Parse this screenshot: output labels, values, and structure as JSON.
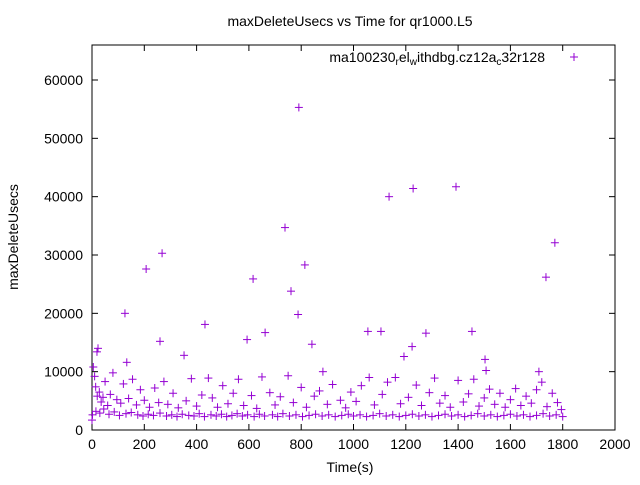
{
  "chart_data": {
    "type": "scatter",
    "title": "maxDeleteUsecs vs Time for qr1000.L5",
    "xlabel": "Time(s)",
    "ylabel": "maxDeleteUsecs",
    "xlim": [
      0,
      2000
    ],
    "ylim": [
      0,
      66000
    ],
    "xticks": [
      0,
      200,
      400,
      600,
      800,
      1000,
      1200,
      1400,
      1600,
      1800,
      2000
    ],
    "yticks": [
      0,
      10000,
      20000,
      30000,
      40000,
      50000,
      60000
    ],
    "grid": false,
    "legend_position": "top-right",
    "series": [
      {
        "name": "ma100230_rel_withdbg.cz12a_c32r128",
        "legend_parts": [
          [
            "ma100230",
            ""
          ],
          [
            "r",
            "sub"
          ],
          [
            "el",
            ""
          ],
          [
            "w",
            "sub"
          ],
          [
            "ithdbg.cz12a",
            ""
          ],
          [
            "c",
            "sub"
          ],
          [
            "32r128",
            ""
          ]
        ],
        "color": "#9400d3",
        "marker": "plus",
        "points": [
          [
            0,
            1700
          ],
          [
            19,
            13400
          ],
          [
            23,
            14000
          ],
          [
            126,
            20000
          ],
          [
            207,
            27600
          ],
          [
            268,
            30300
          ],
          [
            260,
            15200
          ],
          [
            352,
            12800
          ],
          [
            432,
            18100
          ],
          [
            133,
            11600
          ],
          [
            593,
            15500
          ],
          [
            616,
            25900
          ],
          [
            662,
            16700
          ],
          [
            738,
            34700
          ],
          [
            761,
            23800
          ],
          [
            788,
            19800
          ],
          [
            791,
            55300
          ],
          [
            814,
            28300
          ],
          [
            841,
            14700
          ],
          [
            883,
            10000
          ],
          [
            1055,
            16900
          ],
          [
            1105,
            16900
          ],
          [
            1136,
            40000
          ],
          [
            1193,
            12600
          ],
          [
            1224,
            14300
          ],
          [
            1228,
            41400
          ],
          [
            1277,
            16600
          ],
          [
            1392,
            41700
          ],
          [
            1453,
            16900
          ],
          [
            1503,
            12100
          ],
          [
            1507,
            10200
          ],
          [
            1709,
            10000
          ],
          [
            1736,
            26200
          ],
          [
            1770,
            32100
          ],
          [
            5,
            10800
          ],
          [
            10,
            9200
          ],
          [
            14,
            7400
          ],
          [
            20,
            5800
          ],
          [
            28,
            6500
          ],
          [
            35,
            4800
          ],
          [
            42,
            5600
          ],
          [
            50,
            8300
          ],
          [
            60,
            4200
          ],
          [
            70,
            6100
          ],
          [
            80,
            9800
          ],
          [
            95,
            5200
          ],
          [
            110,
            4600
          ],
          [
            120,
            7900
          ],
          [
            140,
            5400
          ],
          [
            155,
            8700
          ],
          [
            170,
            4300
          ],
          [
            185,
            6900
          ],
          [
            200,
            5100
          ],
          [
            220,
            3900
          ],
          [
            240,
            7200
          ],
          [
            255,
            4700
          ],
          [
            275,
            8300
          ],
          [
            290,
            4400
          ],
          [
            310,
            6300
          ],
          [
            330,
            3800
          ],
          [
            360,
            5000
          ],
          [
            380,
            8800
          ],
          [
            400,
            4100
          ],
          [
            420,
            6000
          ],
          [
            445,
            8900
          ],
          [
            460,
            5500
          ],
          [
            480,
            3900
          ],
          [
            500,
            7600
          ],
          [
            520,
            4500
          ],
          [
            540,
            6300
          ],
          [
            560,
            8700
          ],
          [
            580,
            4200
          ],
          [
            610,
            5900
          ],
          [
            630,
            3700
          ],
          [
            650,
            9100
          ],
          [
            680,
            6400
          ],
          [
            700,
            4300
          ],
          [
            720,
            5700
          ],
          [
            750,
            9300
          ],
          [
            770,
            4700
          ],
          [
            800,
            7300
          ],
          [
            820,
            3900
          ],
          [
            850,
            5800
          ],
          [
            870,
            6700
          ],
          [
            900,
            4400
          ],
          [
            920,
            7800
          ],
          [
            950,
            5100
          ],
          [
            970,
            3800
          ],
          [
            990,
            6500
          ],
          [
            1010,
            4900
          ],
          [
            1030,
            7600
          ],
          [
            1060,
            9000
          ],
          [
            1080,
            4300
          ],
          [
            1110,
            6100
          ],
          [
            1130,
            8200
          ],
          [
            1160,
            9000
          ],
          [
            1180,
            4500
          ],
          [
            1210,
            5600
          ],
          [
            1240,
            7700
          ],
          [
            1260,
            4200
          ],
          [
            1290,
            6400
          ],
          [
            1310,
            8900
          ],
          [
            1330,
            4600
          ],
          [
            1350,
            5900
          ],
          [
            1370,
            3900
          ],
          [
            1400,
            8500
          ],
          [
            1420,
            4800
          ],
          [
            1440,
            6200
          ],
          [
            1460,
            8700
          ],
          [
            1480,
            4100
          ],
          [
            1500,
            5500
          ],
          [
            1520,
            7000
          ],
          [
            1540,
            4400
          ],
          [
            1560,
            6300
          ],
          [
            1580,
            3900
          ],
          [
            1600,
            5200
          ],
          [
            1620,
            7100
          ],
          [
            1640,
            4200
          ],
          [
            1660,
            5800
          ],
          [
            1680,
            4600
          ],
          [
            1700,
            6900
          ],
          [
            1720,
            8200
          ],
          [
            1740,
            4000
          ],
          [
            1760,
            6300
          ],
          [
            1780,
            4700
          ],
          [
            1795,
            3500
          ],
          [
            2,
            2600
          ],
          [
            15,
            3200
          ],
          [
            30,
            2900
          ],
          [
            45,
            3600
          ],
          [
            65,
            2700
          ],
          [
            85,
            3100
          ],
          [
            105,
            2500
          ],
          [
            130,
            2800
          ],
          [
            150,
            3000
          ],
          [
            175,
            2600
          ],
          [
            195,
            2400
          ],
          [
            215,
            2700
          ],
          [
            235,
            2500
          ],
          [
            260,
            2900
          ],
          [
            285,
            2400
          ],
          [
            305,
            2600
          ],
          [
            325,
            2300
          ],
          [
            345,
            2700
          ],
          [
            370,
            2500
          ],
          [
            390,
            2400
          ],
          [
            410,
            2800
          ],
          [
            430,
            2300
          ],
          [
            455,
            2600
          ],
          [
            475,
            2400
          ],
          [
            495,
            2700
          ],
          [
            515,
            2300
          ],
          [
            535,
            2500
          ],
          [
            555,
            2800
          ],
          [
            575,
            2400
          ],
          [
            595,
            2600
          ],
          [
            620,
            2300
          ],
          [
            640,
            2700
          ],
          [
            660,
            2400
          ],
          [
            690,
            2600
          ],
          [
            710,
            2300
          ],
          [
            730,
            2800
          ],
          [
            755,
            2400
          ],
          [
            780,
            2600
          ],
          [
            805,
            2300
          ],
          [
            830,
            2500
          ],
          [
            855,
            2700
          ],
          [
            880,
            2400
          ],
          [
            905,
            2600
          ],
          [
            930,
            2300
          ],
          [
            955,
            2500
          ],
          [
            980,
            2700
          ],
          [
            1000,
            2400
          ],
          [
            1025,
            2600
          ],
          [
            1050,
            2300
          ],
          [
            1075,
            2500
          ],
          [
            1100,
            2800
          ],
          [
            1125,
            2400
          ],
          [
            1150,
            2600
          ],
          [
            1175,
            2300
          ],
          [
            1200,
            2500
          ],
          [
            1225,
            2700
          ],
          [
            1250,
            2400
          ],
          [
            1275,
            2600
          ],
          [
            1300,
            2300
          ],
          [
            1325,
            2500
          ],
          [
            1350,
            2700
          ],
          [
            1375,
            2400
          ],
          [
            1400,
            2600
          ],
          [
            1425,
            2300
          ],
          [
            1450,
            2500
          ],
          [
            1475,
            2800
          ],
          [
            1500,
            2400
          ],
          [
            1525,
            2600
          ],
          [
            1550,
            2300
          ],
          [
            1575,
            2500
          ],
          [
            1600,
            2700
          ],
          [
            1625,
            2400
          ],
          [
            1650,
            2600
          ],
          [
            1675,
            2300
          ],
          [
            1700,
            2500
          ],
          [
            1725,
            2800
          ],
          [
            1750,
            2400
          ],
          [
            1775,
            2600
          ],
          [
            1800,
            2300
          ]
        ]
      }
    ]
  }
}
